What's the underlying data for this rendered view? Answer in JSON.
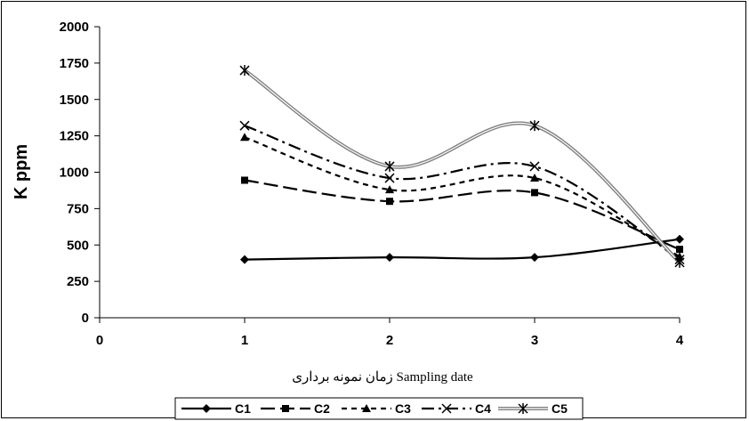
{
  "chart_data": {
    "type": "line",
    "title": "",
    "ylabel": "K ppm",
    "xlabel": "زمان نمونه برداری  Sampling date",
    "x": [
      1,
      2,
      3,
      4
    ],
    "xlim": [
      0,
      4
    ],
    "ylim": [
      0,
      2000
    ],
    "xticks": [
      0,
      1,
      2,
      3,
      4
    ],
    "yticks": [
      0,
      250,
      500,
      750,
      1000,
      1250,
      1500,
      1750,
      2000
    ],
    "grid": false,
    "legend_position": "bottom",
    "smooth": true,
    "series": [
      {
        "name": "C1",
        "values": [
          400,
          415,
          415,
          540
        ],
        "marker": "diamond",
        "dash": "solid",
        "color": "#000000"
      },
      {
        "name": "C2",
        "values": [
          945,
          800,
          860,
          470
        ],
        "marker": "square",
        "dash": "longdash",
        "color": "#000000"
      },
      {
        "name": "C3",
        "values": [
          1240,
          880,
          960,
          420
        ],
        "marker": "triangle",
        "dash": "dash",
        "color": "#000000"
      },
      {
        "name": "C4",
        "values": [
          1320,
          960,
          1040,
          400
        ],
        "marker": "x",
        "dash": "dashdot",
        "color": "#000000"
      },
      {
        "name": "C5",
        "values": [
          1700,
          1040,
          1320,
          380
        ],
        "marker": "star",
        "dash": "double",
        "color": "#808080"
      }
    ]
  }
}
